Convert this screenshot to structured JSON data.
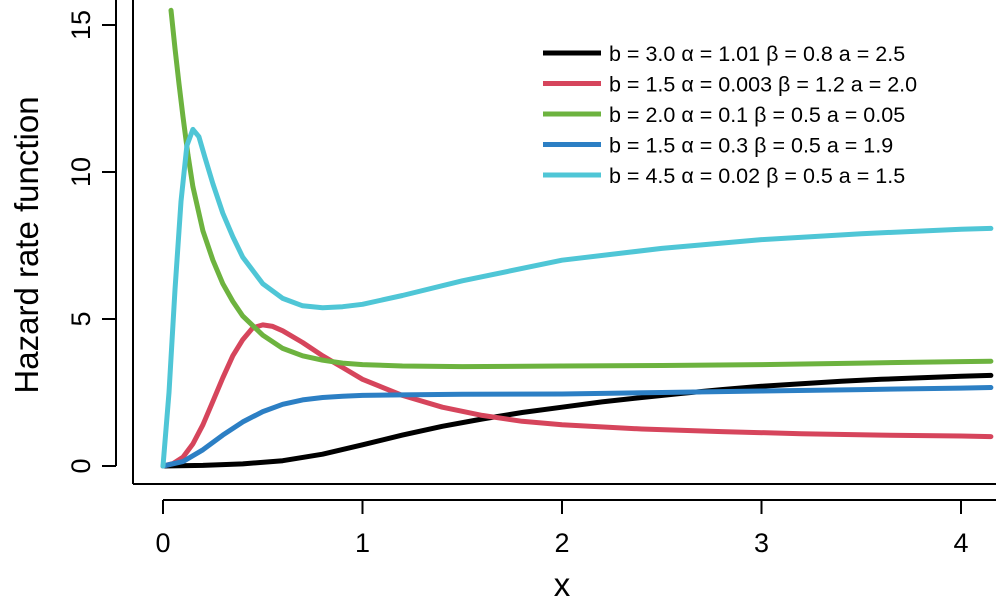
{
  "chart_data": {
    "type": "line",
    "title": "",
    "xlabel": "x",
    "ylabel": "Hazard rate function",
    "xlim": [
      -0.15,
      4.15
    ],
    "ylim": [
      -0.6,
      15.5
    ],
    "x_ticks": [
      {
        "value": 0,
        "label": "0"
      },
      {
        "value": 1,
        "label": "1"
      },
      {
        "value": 2,
        "label": "2"
      },
      {
        "value": 3,
        "label": "3"
      },
      {
        "value": 4,
        "label": "4"
      }
    ],
    "y_ticks": [
      {
        "value": 0,
        "label": "0"
      },
      {
        "value": 5,
        "label": "5"
      },
      {
        "value": 10,
        "label": "10"
      },
      {
        "value": 15,
        "label": "15"
      }
    ],
    "grid": false,
    "legend_position": "top-right",
    "series": [
      {
        "name": "b = 3.0  α = 1.01  β = 0.8  a = 2.5",
        "color": "#000000",
        "x": [
          0,
          0.2,
          0.4,
          0.6,
          0.8,
          1.0,
          1.2,
          1.4,
          1.6,
          1.8,
          2.0,
          2.2,
          2.4,
          2.6,
          2.8,
          3.0,
          3.2,
          3.4,
          3.6,
          3.8,
          4.0,
          4.15
        ],
        "y": [
          0,
          0.02,
          0.07,
          0.18,
          0.4,
          0.72,
          1.05,
          1.35,
          1.6,
          1.82,
          2.0,
          2.18,
          2.33,
          2.47,
          2.6,
          2.71,
          2.8,
          2.88,
          2.95,
          3.0,
          3.05,
          3.08
        ]
      },
      {
        "name": "b = 1.5  α = 0.003  β = 1.2  a = 2.0",
        "color": "#d6455c",
        "x": [
          0,
          0.05,
          0.1,
          0.15,
          0.2,
          0.25,
          0.3,
          0.35,
          0.4,
          0.45,
          0.5,
          0.55,
          0.6,
          0.7,
          0.8,
          0.9,
          1.0,
          1.2,
          1.4,
          1.6,
          1.8,
          2.0,
          2.4,
          2.8,
          3.2,
          3.6,
          4.0,
          4.15
        ],
        "y": [
          0,
          0.08,
          0.3,
          0.75,
          1.4,
          2.2,
          3.0,
          3.75,
          4.3,
          4.7,
          4.8,
          4.75,
          4.6,
          4.2,
          3.75,
          3.35,
          2.95,
          2.4,
          2.0,
          1.72,
          1.52,
          1.4,
          1.26,
          1.17,
          1.1,
          1.05,
          1.02,
          1.0
        ]
      },
      {
        "name": "b = 2.0  α = 0.1  β = 0.5  a = 0.05",
        "color": "#6db33f",
        "x": [
          0.04,
          0.06,
          0.08,
          0.1,
          0.125,
          0.15,
          0.2,
          0.25,
          0.3,
          0.35,
          0.4,
          0.5,
          0.6,
          0.7,
          0.8,
          0.9,
          1.0,
          1.2,
          1.5,
          2.0,
          2.5,
          3.0,
          3.5,
          4.0,
          4.15
        ],
        "y": [
          15.5,
          14.2,
          13.0,
          11.9,
          10.6,
          9.5,
          8.0,
          7.0,
          6.2,
          5.6,
          5.1,
          4.45,
          4.0,
          3.75,
          3.6,
          3.5,
          3.45,
          3.4,
          3.38,
          3.4,
          3.42,
          3.45,
          3.5,
          3.55,
          3.56
        ]
      },
      {
        "name": "b = 1.5  α = 0.3  β = 0.5  a = 1.9",
        "color": "#2c7fc4",
        "x": [
          0,
          0.1,
          0.2,
          0.3,
          0.4,
          0.5,
          0.6,
          0.7,
          0.8,
          0.9,
          1.0,
          1.2,
          1.5,
          2.0,
          2.5,
          3.0,
          3.5,
          4.0,
          4.15
        ],
        "y": [
          0,
          0.15,
          0.55,
          1.05,
          1.5,
          1.85,
          2.1,
          2.25,
          2.33,
          2.37,
          2.4,
          2.42,
          2.44,
          2.45,
          2.5,
          2.55,
          2.6,
          2.65,
          2.67
        ]
      },
      {
        "name": "b = 4.5  α = 0.02  β = 0.5  a = 1.5",
        "color": "#4fc6d6",
        "x": [
          0,
          0.03,
          0.06,
          0.09,
          0.12,
          0.15,
          0.18,
          0.21,
          0.25,
          0.3,
          0.35,
          0.4,
          0.5,
          0.6,
          0.7,
          0.8,
          0.9,
          1.0,
          1.2,
          1.5,
          2.0,
          2.5,
          3.0,
          3.5,
          4.0,
          4.15
        ],
        "y": [
          0,
          2.5,
          6.0,
          9.0,
          10.9,
          11.45,
          11.2,
          10.5,
          9.6,
          8.6,
          7.8,
          7.1,
          6.2,
          5.7,
          5.45,
          5.38,
          5.42,
          5.5,
          5.8,
          6.3,
          7.0,
          7.4,
          7.7,
          7.9,
          8.05,
          8.08
        ]
      }
    ]
  }
}
